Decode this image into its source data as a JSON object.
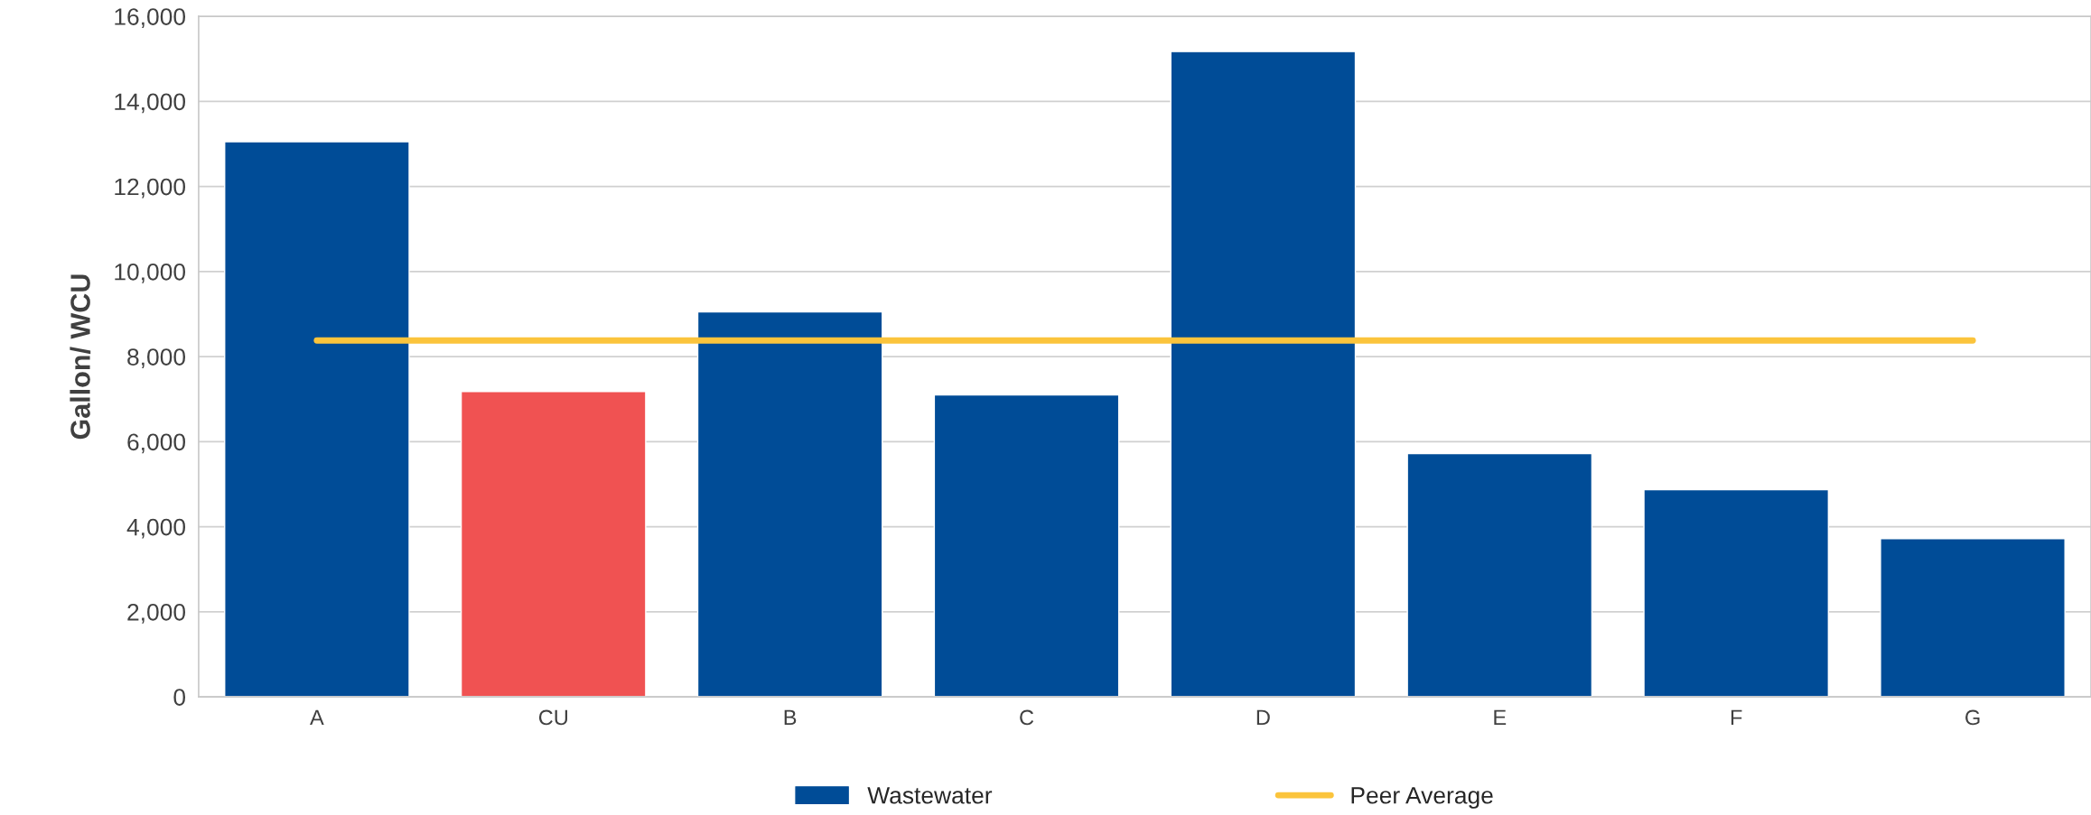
{
  "chart_data": {
    "type": "bar",
    "ylabel": "Gallon/ WCU",
    "categories": [
      "A",
      "CU",
      "B",
      "C",
      "D",
      "E",
      "F",
      "G"
    ],
    "series": [
      {
        "name": "Wastewater",
        "color": "#004c97",
        "colors": [
          "#004c97",
          "#f05252",
          "#004c97",
          "#004c97",
          "#004c97",
          "#004c97",
          "#004c97",
          "#004c97"
        ],
        "values": [
          13050,
          7180,
          9050,
          7100,
          15170,
          5720,
          4870,
          3720
        ]
      },
      {
        "name": "Peer Average",
        "type": "line",
        "color": "#fbc43c",
        "values": [
          8380,
          8380,
          8380,
          8380,
          8380,
          8380,
          8380,
          8380
        ]
      }
    ],
    "ylim": [
      0,
      16000
    ],
    "yticks": [
      {
        "value": 0,
        "label": "0"
      },
      {
        "value": 2000,
        "label": "2,000"
      },
      {
        "value": 4000,
        "label": "4,000"
      },
      {
        "value": 6000,
        "label": "6,000"
      },
      {
        "value": 8000,
        "label": "8,000"
      },
      {
        "value": 10000,
        "label": "10,000"
      },
      {
        "value": 12000,
        "label": "12,000"
      },
      {
        "value": 14000,
        "label": "14,000"
      },
      {
        "value": 16000,
        "label": "16,000"
      }
    ],
    "grid": "y",
    "legend": "bottom"
  }
}
